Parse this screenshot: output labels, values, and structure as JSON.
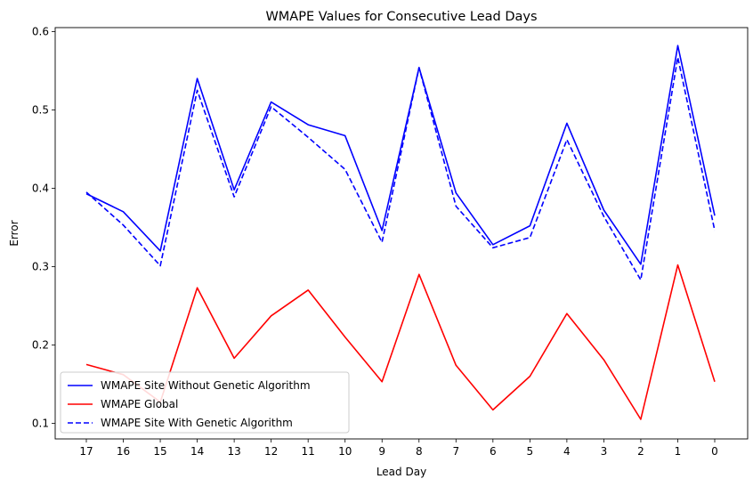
{
  "chart_data": {
    "type": "line",
    "title": "WMAPE Values for Consecutive Lead Days",
    "xlabel": "Lead Day",
    "ylabel": "Error",
    "categories": [
      "17",
      "16",
      "15",
      "14",
      "13",
      "12",
      "11",
      "10",
      "9",
      "8",
      "7",
      "6",
      "5",
      "4",
      "3",
      "2",
      "1",
      "0"
    ],
    "ylim": [
      0.08,
      0.605
    ],
    "yticks": [
      "0.1",
      "0.2",
      "0.3",
      "0.4",
      "0.5",
      "0.6"
    ],
    "legend_position": "lower-left",
    "grid": false,
    "series": [
      {
        "name": "WMAPE Site Without Genetic Algorithm",
        "color": "#0000ff",
        "dash": "solid",
        "values": [
          0.393,
          0.37,
          0.32,
          0.54,
          0.398,
          0.51,
          0.481,
          0.467,
          0.346,
          0.554,
          0.394,
          0.328,
          0.352,
          0.483,
          0.372,
          0.303,
          0.582,
          0.365
        ]
      },
      {
        "name": "WMAPE Global",
        "color": "#ff0000",
        "dash": "solid",
        "values": [
          0.175,
          0.162,
          0.127,
          0.273,
          0.183,
          0.237,
          0.27,
          0.21,
          0.153,
          0.29,
          0.174,
          0.117,
          0.16,
          0.24,
          0.181,
          0.105,
          0.302,
          0.153
        ]
      },
      {
        "name": "WMAPE Site With Genetic Algorithm",
        "color": "#0000ff",
        "dash": "dashed",
        "values": [
          0.395,
          0.353,
          0.301,
          0.525,
          0.389,
          0.504,
          0.465,
          0.424,
          0.331,
          0.554,
          0.377,
          0.324,
          0.337,
          0.462,
          0.364,
          0.283,
          0.567,
          0.346
        ]
      }
    ]
  }
}
